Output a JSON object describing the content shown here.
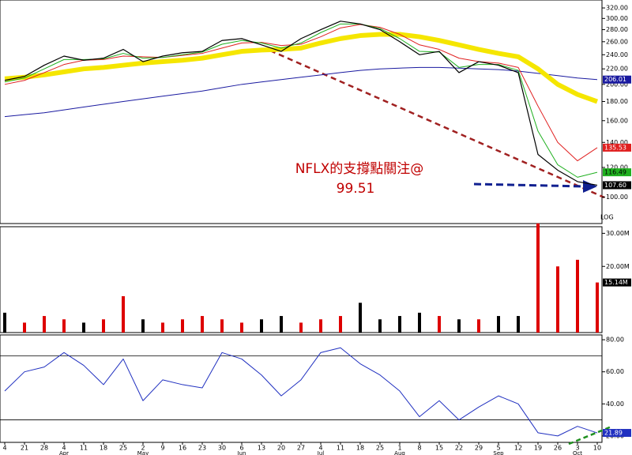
{
  "chart_data": [
    {
      "type": "line",
      "log_scale": true,
      "scale_label": "LOG",
      "ylim": [
        85,
        336
      ],
      "yticks": [
        {
          "value": 100,
          "label": "100.00"
        },
        {
          "value": 120,
          "label": "120.00"
        },
        {
          "value": 140,
          "label": "140.00"
        },
        {
          "value": 160,
          "label": "160.00"
        },
        {
          "value": 180,
          "label": "180.00"
        },
        {
          "value": 200,
          "label": "200.00"
        },
        {
          "value": 220,
          "label": "220.00"
        },
        {
          "value": 240,
          "label": "240.00"
        },
        {
          "value": 260,
          "label": "260.00"
        },
        {
          "value": 280,
          "label": "280.00"
        },
        {
          "value": 300,
          "label": "300.00"
        },
        {
          "value": 320,
          "label": "320.00"
        }
      ],
      "annotation": [
        "NFLX的支撐點關注@",
        "99.51"
      ],
      "series": [
        {
          "color": "#1a1aa0",
          "width": 1,
          "values": [
            164,
            166,
            168,
            171,
            174,
            177,
            180,
            183,
            186,
            189,
            192,
            196,
            200,
            203,
            206,
            209,
            212,
            215,
            218,
            220,
            221,
            222,
            222,
            221,
            220,
            219,
            217,
            214,
            211,
            208,
            206.01
          ],
          "end_label": "206.01"
        },
        {
          "color": "#f5e600",
          "width": 6,
          "values": [
            207,
            209,
            212,
            216,
            220,
            222,
            225,
            228,
            230,
            232,
            235,
            240,
            245,
            247,
            248,
            250,
            258,
            265,
            270,
            272,
            272,
            268,
            262,
            255,
            248,
            242,
            237,
            220,
            200,
            188,
            180
          ]
        },
        {
          "color": "#e02020",
          "width": 1,
          "values": [
            200,
            205,
            215,
            226,
            232,
            233,
            238,
            237,
            236,
            239,
            242,
            250,
            258,
            259,
            254,
            256,
            268,
            283,
            289,
            284,
            272,
            255,
            248,
            235,
            230,
            228,
            222,
            175,
            140,
            125,
            135.53
          ],
          "end_label": "135.53"
        },
        {
          "color": "#20b020",
          "width": 1,
          "values": [
            203,
            208,
            220,
            233,
            233,
            234,
            242,
            235,
            236,
            240,
            244,
            256,
            262,
            258,
            250,
            258,
            275,
            290,
            290,
            282,
            265,
            245,
            244,
            222,
            226,
            226,
            218,
            150,
            122,
            113,
            116.49
          ],
          "end_label": "116.49"
        },
        {
          "color": "#000000",
          "width": 1.2,
          "values": [
            205,
            210,
            225,
            238,
            232,
            235,
            248,
            230,
            238,
            243,
            245,
            262,
            265,
            255,
            245,
            265,
            280,
            295,
            290,
            280,
            260,
            240,
            245,
            215,
            230,
            225,
            215,
            130,
            118,
            110,
            107.6
          ],
          "end_label": "107.60"
        }
      ]
    },
    {
      "type": "bar",
      "ylim": [
        0,
        32
      ],
      "yticks": [
        {
          "value": 20,
          "label": "20.00M"
        },
        {
          "value": 30,
          "label": "30.00M"
        }
      ],
      "values": [
        6,
        3,
        5,
        4,
        3,
        4,
        11,
        4,
        3,
        4,
        5,
        4,
        3,
        4,
        5,
        3,
        4,
        5,
        9,
        4,
        5,
        6,
        5,
        4,
        4,
        5,
        5,
        33,
        20,
        22,
        15.14
      ],
      "colors": [
        "#000",
        "#d00",
        "#d00",
        "#d00",
        "#000",
        "#d00",
        "#d00",
        "#000",
        "#d00",
        "#d00",
        "#d00",
        "#d00",
        "#d00",
        "#000",
        "#000",
        "#d00",
        "#d00",
        "#d00",
        "#000",
        "#000",
        "#000",
        "#000",
        "#d00",
        "#000",
        "#d00",
        "#000",
        "#000",
        "#d00",
        "#d00",
        "#d00",
        "#d00"
      ],
      "end_label": "15.14M"
    },
    {
      "type": "line",
      "ylim": [
        16,
        83
      ],
      "yticks": [
        {
          "value": 20,
          "label": "20.00"
        },
        {
          "value": 40,
          "label": "40.00"
        },
        {
          "value": 60,
          "label": "60.00"
        },
        {
          "value": 80,
          "label": "80.00"
        }
      ],
      "levels": [
        30,
        70
      ],
      "categories": [
        "4",
        "21",
        "28",
        "4",
        "11",
        "18",
        "25",
        "2",
        "9",
        "16",
        "23",
        "30",
        "6",
        "13",
        "20",
        "27",
        "4",
        "11",
        "18",
        "25",
        "1",
        "8",
        "15",
        "22",
        "29",
        "5",
        "12",
        "19",
        "26",
        "3",
        "10"
      ],
      "months": [
        {
          "category": 3,
          "label": "Apr"
        },
        {
          "category": 7,
          "label": "May"
        },
        {
          "category": 12,
          "label": "Jun"
        },
        {
          "category": 16,
          "label": "Jul"
        },
        {
          "category": 20,
          "label": "Aug"
        },
        {
          "category": 25,
          "label": "Sep"
        },
        {
          "category": 29,
          "label": "Oct"
        }
      ],
      "series": [
        {
          "color": "#2030c0",
          "values": [
            48,
            60,
            63,
            72,
            64,
            52,
            68,
            42,
            55,
            52,
            50,
            72,
            68,
            58,
            45,
            55,
            72,
            75,
            65,
            58,
            48,
            32,
            42,
            30,
            38,
            45,
            40,
            22,
            20,
            26,
            21.89
          ],
          "end_label": "21.89"
        }
      ]
    }
  ]
}
